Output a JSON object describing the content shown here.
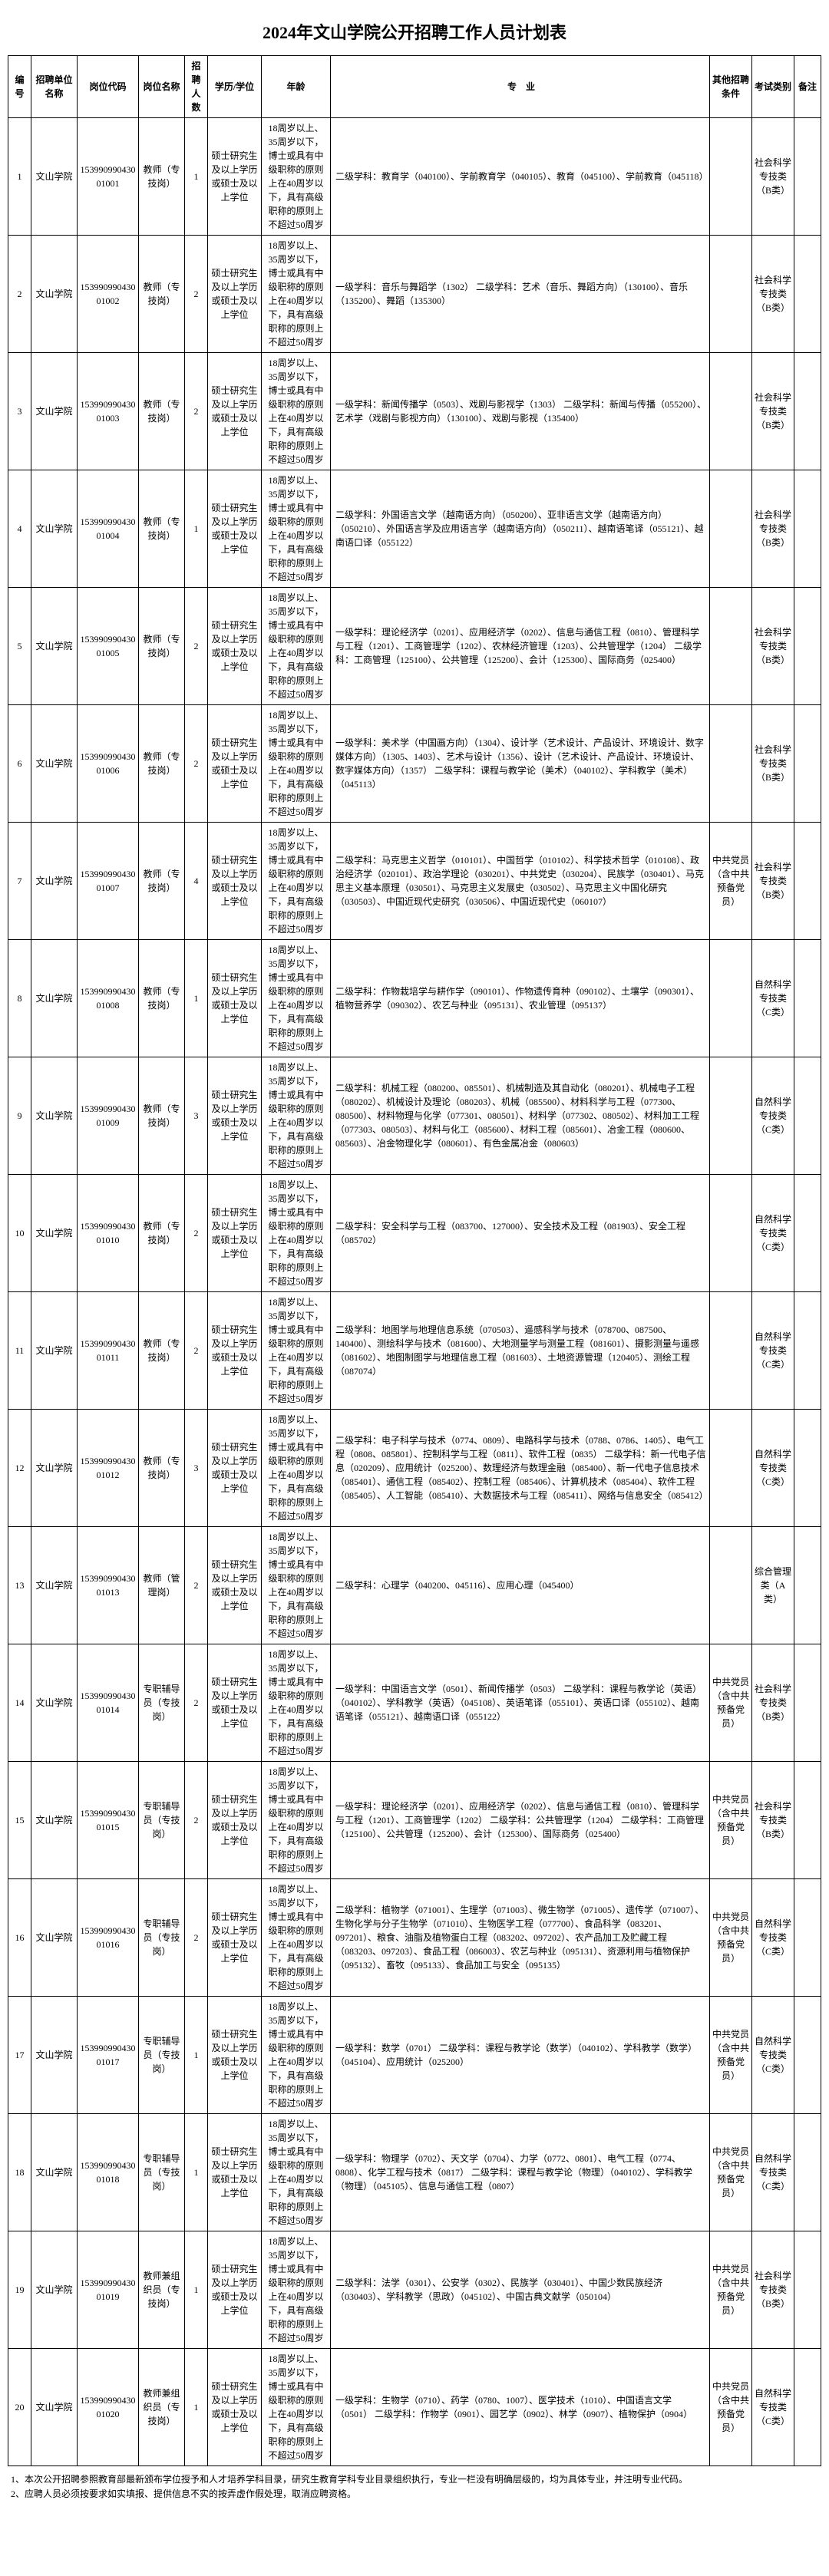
{
  "title": "2024年文山学院公开招聘工作人员计划表",
  "headers": {
    "no": "编号",
    "unit": "招聘单位名称",
    "code": "岗位代码",
    "name": "岗位名称",
    "num": "招聘人数",
    "edu": "学历/学位",
    "age": "年龄",
    "major": "专　业",
    "other": "其他招聘条件",
    "exam": "考试类别",
    "note": "备注"
  },
  "rows": [
    {
      "no": "1",
      "unit": "文山学院",
      "code": "15399099043001001",
      "name": "教师（专技岗）",
      "num": "1",
      "edu": "硕士研究生及以上学历或硕士及以上学位",
      "age": "18周岁以上、35周岁以下，博士或具有中级职称的原则上在40周岁以下，具有高级职称的原则上不超过50周岁",
      "major": "二级学科：教育学（040100）、学前教育学（040105）、教育（045100）、学前教育（045118）",
      "other": "",
      "exam": "社会科学专技类（B类）",
      "note": ""
    },
    {
      "no": "2",
      "unit": "文山学院",
      "code": "15399099043001002",
      "name": "教师（专技岗）",
      "num": "2",
      "edu": "硕士研究生及以上学历或硕士及以上学位",
      "age": "18周岁以上、35周岁以下，博士或具有中级职称的原则上在40周岁以下，具有高级职称的原则上不超过50周岁",
      "major": "一级学科：音乐与舞蹈学（1302）\n二级学科：艺术（音乐、舞蹈方向）（130100）、音乐（135200）、舞蹈（135300）",
      "other": "",
      "exam": "社会科学专技类（B类）",
      "note": ""
    },
    {
      "no": "3",
      "unit": "文山学院",
      "code": "15399099043001003",
      "name": "教师（专技岗）",
      "num": "2",
      "edu": "硕士研究生及以上学历或硕士及以上学位",
      "age": "18周岁以上、35周岁以下，博士或具有中级职称的原则上在40周岁以下，具有高级职称的原则上不超过50周岁",
      "major": "一级学科：新闻传播学（0503）、戏剧与影视学（1303）\n二级学科：新闻与传播（055200）、艺术学（戏剧与影视方向）（130100）、戏剧与影视（135400）",
      "other": "",
      "exam": "社会科学专技类（B类）",
      "note": ""
    },
    {
      "no": "4",
      "unit": "文山学院",
      "code": "15399099043001004",
      "name": "教师（专技岗）",
      "num": "1",
      "edu": "硕士研究生及以上学历或硕士及以上学位",
      "age": "18周岁以上、35周岁以下，博士或具有中级职称的原则上在40周岁以下，具有高级职称的原则上不超过50周岁",
      "major": "二级学科：外国语言文学（越南语方向）（050200）、亚非语言文学（越南语方向）（050210）、外国语言学及应用语言学（越南语方向）（050211）、越南语笔译（055121）、越南语口译（055122）",
      "other": "",
      "exam": "社会科学专技类（B类）",
      "note": ""
    },
    {
      "no": "5",
      "unit": "文山学院",
      "code": "15399099043001005",
      "name": "教师（专技岗）",
      "num": "2",
      "edu": "硕士研究生及以上学历或硕士及以上学位",
      "age": "18周岁以上、35周岁以下，博士或具有中级职称的原则上在40周岁以下，具有高级职称的原则上不超过50周岁",
      "major": "一级学科：理论经济学（0201）、应用经济学（0202）、信息与通信工程（0810）、管理科学与工程（1201）、工商管理学（1202）、农林经济管理（1203）、公共管理学（1204）\n二级学科：工商管理（125100）、公共管理（125200）、会计（125300）、国际商务（025400）",
      "other": "",
      "exam": "社会科学专技类（B类）",
      "note": ""
    },
    {
      "no": "6",
      "unit": "文山学院",
      "code": "15399099043001006",
      "name": "教师（专技岗）",
      "num": "2",
      "edu": "硕士研究生及以上学历或硕士及以上学位",
      "age": "18周岁以上、35周岁以下，博士或具有中级职称的原则上在40周岁以下，具有高级职称的原则上不超过50周岁",
      "major": "一级学科：美术学（中国画方向）（1304）、设计学（艺术设计、产品设计、环境设计、数字媒体方向）（1305、1403）、艺术与设计（1356）、设计（艺术设计、产品设计、环境设计、数字媒体方向）（1357）\n二级学科：课程与教学论（美术）（040102）、学科教学（美术）（045113）",
      "other": "",
      "exam": "社会科学专技类（B类）",
      "note": ""
    },
    {
      "no": "7",
      "unit": "文山学院",
      "code": "15399099043001007",
      "name": "教师（专技岗）",
      "num": "4",
      "edu": "硕士研究生及以上学历或硕士及以上学位",
      "age": "18周岁以上、35周岁以下，博士或具有中级职称的原则上在40周岁以下，具有高级职称的原则上不超过50周岁",
      "major": "二级学科：马克思主义哲学（010101）、中国哲学（010102）、科学技术哲学（010108）、政治经济学（020101）、政治学理论（030201）、中共党史（030204）、民族学（030401）、马克思主义基本原理（030501）、马克思主义发展史（030502）、马克思主义中国化研究（030503）、中国近现代史研究（030506）、中国近现代史（060107）",
      "other": "中共党员（含中共预备党员）",
      "exam": "社会科学专技类（B类）",
      "note": ""
    },
    {
      "no": "8",
      "unit": "文山学院",
      "code": "15399099043001008",
      "name": "教师（专技岗）",
      "num": "1",
      "edu": "硕士研究生及以上学历或硕士及以上学位",
      "age": "18周岁以上、35周岁以下，博士或具有中级职称的原则上在40周岁以下，具有高级职称的原则上不超过50周岁",
      "major": "二级学科：作物栽培学与耕作学（090101）、作物遗传育种（090102）、土壤学（090301）、植物营养学（090302）、农艺与种业（095131）、农业管理（095137）",
      "other": "",
      "exam": "自然科学专技类（C类）",
      "note": ""
    },
    {
      "no": "9",
      "unit": "文山学院",
      "code": "15399099043001009",
      "name": "教师（专技岗）",
      "num": "3",
      "edu": "硕士研究生及以上学历或硕士及以上学位",
      "age": "18周岁以上、35周岁以下，博士或具有中级职称的原则上在40周岁以下，具有高级职称的原则上不超过50周岁",
      "major": "二级学科：机械工程（080200、085501）、机械制造及其自动化（080201）、机械电子工程（080202）、机械设计及理论（080203）、机械（085500）、材料科学与工程（077300、080500）、材料物理与化学（077301、080501）、材料学（077302、080502）、材料加工工程（077303、080503）、材料与化工（085600）、材料工程（085601）、冶金工程（080600、085603）、冶金物理化学（080601）、有色金属冶金（080603）",
      "other": "",
      "exam": "自然科学专技类（C类）",
      "note": ""
    },
    {
      "no": "10",
      "unit": "文山学院",
      "code": "15399099043001010",
      "name": "教师（专技岗）",
      "num": "2",
      "edu": "硕士研究生及以上学历或硕士及以上学位",
      "age": "18周岁以上、35周岁以下，博士或具有中级职称的原则上在40周岁以下，具有高级职称的原则上不超过50周岁",
      "major": "二级学科：安全科学与工程（083700、127000）、安全技术及工程（081903）、安全工程（085702）",
      "other": "",
      "exam": "自然科学专技类（C类）",
      "note": ""
    },
    {
      "no": "11",
      "unit": "文山学院",
      "code": "15399099043001011",
      "name": "教师（专技岗）",
      "num": "2",
      "edu": "硕士研究生及以上学历或硕士及以上学位",
      "age": "18周岁以上、35周岁以下，博士或具有中级职称的原则上在40周岁以下，具有高级职称的原则上不超过50周岁",
      "major": "二级学科：地图学与地理信息系统（070503）、遥感科学与技术（078700、087500、140400）、测绘科学与技术（081600）、大地测量学与测量工程（081601）、摄影测量与遥感（081602）、地图制图学与地理信息工程（081603）、土地资源管理（120405）、测绘工程（087074）",
      "other": "",
      "exam": "自然科学专技类（C类）",
      "note": ""
    },
    {
      "no": "12",
      "unit": "文山学院",
      "code": "15399099043001012",
      "name": "教师（专技岗）",
      "num": "3",
      "edu": "硕士研究生及以上学历或硕士及以上学位",
      "age": "18周岁以上、35周岁以下，博士或具有中级职称的原则上在40周岁以下，具有高级职称的原则上不超过50周岁",
      "major": "二级学科：电子科学与技术（0774、0809）、电路科学与技术（0788、0786、1405）、电气工程（0808、085801）、控制科学与工程（0811）、软件工程（0835）\n二级学科：新一代电子信息（020209）、应用统计（025200）、数理经济与数理金融（085400）、新一代电子信息技术（085401）、通信工程（085402）、控制工程（085406）、计算机技术（085404）、软件工程（085405）、人工智能（085410）、大数据技术与工程（085411）、网络与信息安全（085412）",
      "other": "",
      "exam": "自然科学专技类（C类）",
      "note": ""
    },
    {
      "no": "13",
      "unit": "文山学院",
      "code": "15399099043001013",
      "name": "教师（管理岗）",
      "num": "2",
      "edu": "硕士研究生及以上学历或硕士及以上学位",
      "age": "18周岁以上、35周岁以下，博士或具有中级职称的原则上在40周岁以下，具有高级职称的原则上不超过50周岁",
      "major": "二级学科：心理学（040200、045116）、应用心理（045400）",
      "other": "",
      "exam": "综合管理类（A类）",
      "note": ""
    },
    {
      "no": "14",
      "unit": "文山学院",
      "code": "15399099043001014",
      "name": "专职辅导员（专技岗）",
      "num": "2",
      "edu": "硕士研究生及以上学历或硕士及以上学位",
      "age": "18周岁以上、35周岁以下，博士或具有中级职称的原则上在40周岁以下，具有高级职称的原则上不超过50周岁",
      "major": "一级学科：中国语言文学（0501）、新闻传播学（0503）\n二级学科：课程与教学论（英语）（040102）、学科教学（英语）（045108）、英语笔译（055101）、英语口译（055102）、越南语笔译（055121）、越南语口译（055122）",
      "other": "中共党员（含中共预备党员）",
      "exam": "社会科学专技类（B类）",
      "note": ""
    },
    {
      "no": "15",
      "unit": "文山学院",
      "code": "15399099043001015",
      "name": "专职辅导员（专技岗）",
      "num": "2",
      "edu": "硕士研究生及以上学历或硕士及以上学位",
      "age": "18周岁以上、35周岁以下，博士或具有中级职称的原则上在40周岁以下，具有高级职称的原则上不超过50周岁",
      "major": "一级学科：理论经济学（0201）、应用经济学（0202）、信息与通信工程（0810）、管理科学与工程（1201）、工商管理学（1202）\n二级学科：公共管理学（1204）\n二级学科：工商管理（125100）、公共管理（125200）、会计（125300）、国际商务（025400）",
      "other": "中共党员（含中共预备党员）",
      "exam": "社会科学专技类（B类）",
      "note": ""
    },
    {
      "no": "16",
      "unit": "文山学院",
      "code": "15399099043001016",
      "name": "专职辅导员（专技岗）",
      "num": "2",
      "edu": "硕士研究生及以上学历或硕士及以上学位",
      "age": "18周岁以上、35周岁以下，博士或具有中级职称的原则上在40周岁以下，具有高级职称的原则上不超过50周岁",
      "major": "二级学科：植物学（071001）、生理学（071003）、微生物学（071005）、遗传学（071007）、生物化学与分子生物学（071010）、生物医学工程（077700）、食品科学（083201、097201）、粮食、油脂及植物蛋白工程（083202、097202）、农产品加工及贮藏工程（083203、097203）、食品工程（086003）、农艺与种业（095131）、资源利用与植物保护（095132）、畜牧（095133）、食品加工与安全（095135）",
      "other": "中共党员（含中共预备党员）",
      "exam": "自然科学专技类（C类）",
      "note": ""
    },
    {
      "no": "17",
      "unit": "文山学院",
      "code": "15399099043001017",
      "name": "专职辅导员（专技岗）",
      "num": "1",
      "edu": "硕士研究生及以上学历或硕士及以上学位",
      "age": "18周岁以上、35周岁以下，博士或具有中级职称的原则上在40周岁以下，具有高级职称的原则上不超过50周岁",
      "major": "一级学科：数学（0701）\n二级学科：课程与教学论（数学）（040102）、学科教学（数学）（045104）、应用统计（025200）",
      "other": "中共党员（含中共预备党员）",
      "exam": "自然科学专技类（C类）",
      "note": ""
    },
    {
      "no": "18",
      "unit": "文山学院",
      "code": "15399099043001018",
      "name": "专职辅导员（专技岗）",
      "num": "1",
      "edu": "硕士研究生及以上学历或硕士及以上学位",
      "age": "18周岁以上、35周岁以下，博士或具有中级职称的原则上在40周岁以下，具有高级职称的原则上不超过50周岁",
      "major": "一级学科：物理学（0702）、天文学（0704）、力学（0772、0801）、电气工程（0774、0808）、化学工程与技术（0817）\n二级学科：课程与教学论（物理）（040102）、学科教学（物理）（045105）、信息与通信工程（0807）",
      "other": "中共党员（含中共预备党员）",
      "exam": "自然科学专技类（C类）",
      "note": ""
    },
    {
      "no": "19",
      "unit": "文山学院",
      "code": "15399099043001019",
      "name": "教师兼组织员（专技岗）",
      "num": "1",
      "edu": "硕士研究生及以上学历或硕士及以上学位",
      "age": "18周岁以上、35周岁以下，博士或具有中级职称的原则上在40周岁以下，具有高级职称的原则上不超过50周岁",
      "major": "二级学科：法学（0301）、公安学（0302）、民族学（030401）、中国少数民族经济（030403）、学科教学（思政）（045102）、中国古典文献学（050104）",
      "other": "中共党员（含中共预备党员）",
      "exam": "社会科学专技类（B类）",
      "note": ""
    },
    {
      "no": "20",
      "unit": "文山学院",
      "code": "15399099043001020",
      "name": "教师兼组织员（专技岗）",
      "num": "1",
      "edu": "硕士研究生及以上学历或硕士及以上学位",
      "age": "18周岁以上、35周岁以下，博士或具有中级职称的原则上在40周岁以下，具有高级职称的原则上不超过50周岁",
      "major": "一级学科：生物学（0710）、药学（0780、1007）、医学技术（1010）、中国语言文学（0501）\n二级学科：作物学（0901）、园艺学（0902）、林学（0907）、植物保护（0904）",
      "other": "中共党员（含中共预备党员）",
      "exam": "自然科学专技类（C类）",
      "note": ""
    }
  ],
  "notes": {
    "n1": "1、本次公开招聘参照教育部最新颁布学位授予和人才培养学科目录，研究生教育学科专业目录组织执行，专业一栏没有明确层级的，均为具体专业，并注明专业代码。",
    "n2": "2、应聘人员必须按要求如实填报、提供信息不实的按弄虚作假处理，取消应聘资格。"
  }
}
